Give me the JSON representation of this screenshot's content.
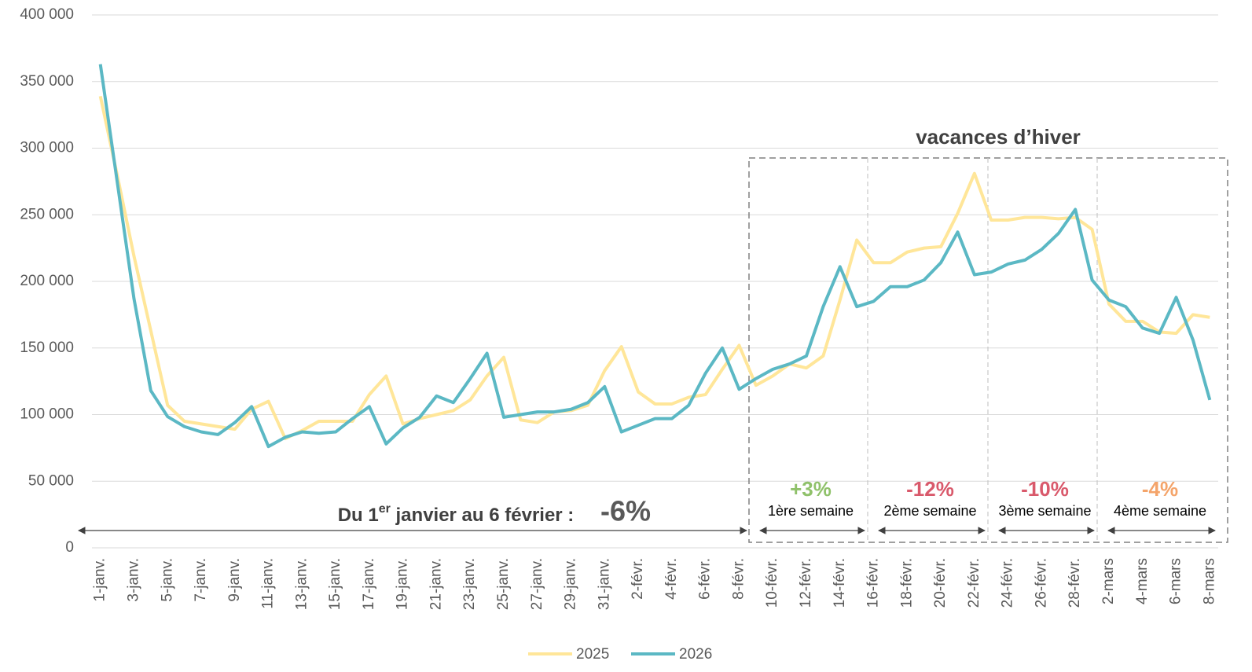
{
  "chart_data": {
    "type": "line",
    "categories": [
      "1-janv.",
      null,
      "3-janv.",
      null,
      "5-janv.",
      null,
      "7-janv.",
      null,
      "9-janv.",
      null,
      "11-janv.",
      null,
      "13-janv.",
      null,
      "15-janv.",
      null,
      "17-janv.",
      null,
      "19-janv.",
      null,
      "21-janv.",
      null,
      "23-janv.",
      null,
      "25-janv.",
      null,
      "27-janv.",
      null,
      "29-janv.",
      null,
      "31-janv.",
      null,
      "2-févr.",
      null,
      "4-févr.",
      null,
      "6-févr.",
      null,
      "8-févr.",
      null,
      "10-févr.",
      null,
      "12-févr.",
      null,
      "14-févr.",
      null,
      "16-févr.",
      null,
      "18-févr.",
      null,
      "20-févr.",
      null,
      "22-févr.",
      null,
      "24-févr.",
      null,
      "26-févr.",
      null,
      "28-févr.",
      null,
      "2-mars",
      null,
      "4-mars",
      null,
      "6-mars",
      null,
      "8-mars"
    ],
    "series": [
      {
        "name": "2025",
        "color": "#ffe699",
        "values": [
          339000,
          280000,
          219000,
          163000,
          107000,
          95000,
          93000,
          91000,
          89000,
          104000,
          110000,
          82000,
          88000,
          95000,
          95000,
          95000,
          115000,
          129000,
          93000,
          97000,
          100000,
          103000,
          111000,
          129000,
          143000,
          96000,
          94000,
          102000,
          103000,
          107000,
          133000,
          151000,
          117000,
          108000,
          108000,
          113000,
          115000,
          134000,
          152000,
          122000,
          129000,
          138000,
          135000,
          144000,
          186000,
          231000,
          214000,
          214000,
          222000,
          225000,
          226000,
          251000,
          281000,
          246000,
          246000,
          248000,
          248000,
          247000,
          248000,
          239000,
          183000,
          170000,
          170000,
          162000,
          161000,
          175000,
          173000
        ]
      },
      {
        "name": "2026",
        "color": "#5bb8c4",
        "values": [
          363000,
          275000,
          187000,
          118000,
          98500,
          91000,
          87000,
          85000,
          94000,
          106000,
          76000,
          83000,
          87000,
          86000,
          87000,
          97000,
          106000,
          78000,
          90000,
          98000,
          114000,
          109000,
          127000,
          146000,
          98000,
          100000,
          102000,
          102000,
          104000,
          109000,
          121000,
          87000,
          92000,
          97000,
          97000,
          107000,
          131000,
          150000,
          119000,
          127000,
          134000,
          138000,
          144000,
          181000,
          211000,
          181000,
          185000,
          196000,
          196000,
          201000,
          214000,
          237000,
          205000,
          207000,
          213000,
          216000,
          224000,
          236000,
          254000,
          201000,
          186000,
          181000,
          165000,
          161000,
          188000,
          156000,
          111000
        ]
      }
    ],
    "ylim": [
      0,
      400000
    ],
    "yticks": [
      0,
      {
        "value": 50000,
        "label": "50 000"
      },
      {
        "value": 100000,
        "label": "100 000"
      },
      {
        "value": 150000,
        "label": "150 000"
      },
      {
        "value": 200000,
        "label": "200 000"
      },
      {
        "value": 250000,
        "label": "250 000"
      },
      {
        "value": 300000,
        "label": "300 000"
      },
      {
        "value": 350000,
        "label": "350 000"
      },
      {
        "value": 400000,
        "label": "400 000"
      }
    ],
    "grid": true,
    "legend": "bottom",
    "period": {
      "prefix": "Du 1",
      "sup": "er",
      "suffix": " janvier au 6 février :",
      "change": "-6%",
      "color": "#f4a46a"
    },
    "vacation": {
      "title": "vacances d’hiver",
      "weeks": [
        {
          "change": "+3%",
          "label": "1ère semaine",
          "color": "#8fc16a"
        },
        {
          "change": "-12%",
          "label": "2ème semaine",
          "color": "#d9596b"
        },
        {
          "change": "-10%",
          "label": "3ème semaine",
          "color": "#d9596b"
        },
        {
          "change": "-4%",
          "label": "4ème semaine",
          "color": "#f4a46a"
        }
      ]
    }
  }
}
